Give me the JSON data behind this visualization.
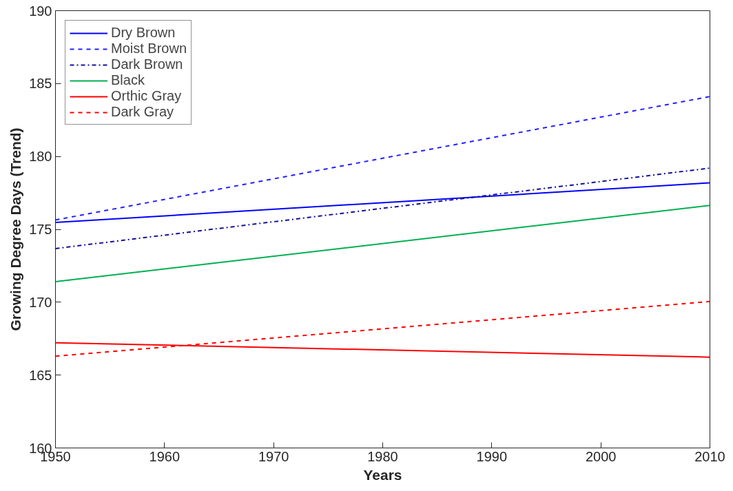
{
  "chart_data": {
    "type": "line",
    "xlabel": "Years",
    "ylabel": "Growing Degree Days (Trend)",
    "x": [
      1950,
      2010
    ],
    "series": [
      {
        "name": "Dry Brown",
        "color": "#0000ff",
        "line_style": "solid",
        "values": [
          175.47,
          178.19
        ]
      },
      {
        "name": "Moist Brown",
        "color": "#2020ff",
        "line_style": "dashed",
        "values": [
          175.64,
          184.11
        ]
      },
      {
        "name": "Dark Brown",
        "color": "#101099",
        "line_style": "dashdot",
        "values": [
          173.68,
          179.2
        ]
      },
      {
        "name": "Black",
        "color": "#00b050",
        "line_style": "solid",
        "values": [
          171.41,
          176.64
        ]
      },
      {
        "name": "Orthic Gray",
        "color": "#ff0000",
        "line_style": "solid",
        "values": [
          167.22,
          166.23
        ]
      },
      {
        "name": "Dark Gray",
        "color": "#ff0000",
        "line_style": "dashed",
        "values": [
          166.3,
          170.05
        ]
      }
    ],
    "xlim": [
      1950,
      2010
    ],
    "xticks": [
      1950,
      1960,
      1970,
      1980,
      1990,
      2000,
      2010
    ],
    "ylim": [
      160,
      190
    ],
    "yticks": [
      160,
      165,
      170,
      175,
      180,
      185,
      190
    ],
    "grid": false,
    "legend": "top left",
    "marker": "none"
  }
}
